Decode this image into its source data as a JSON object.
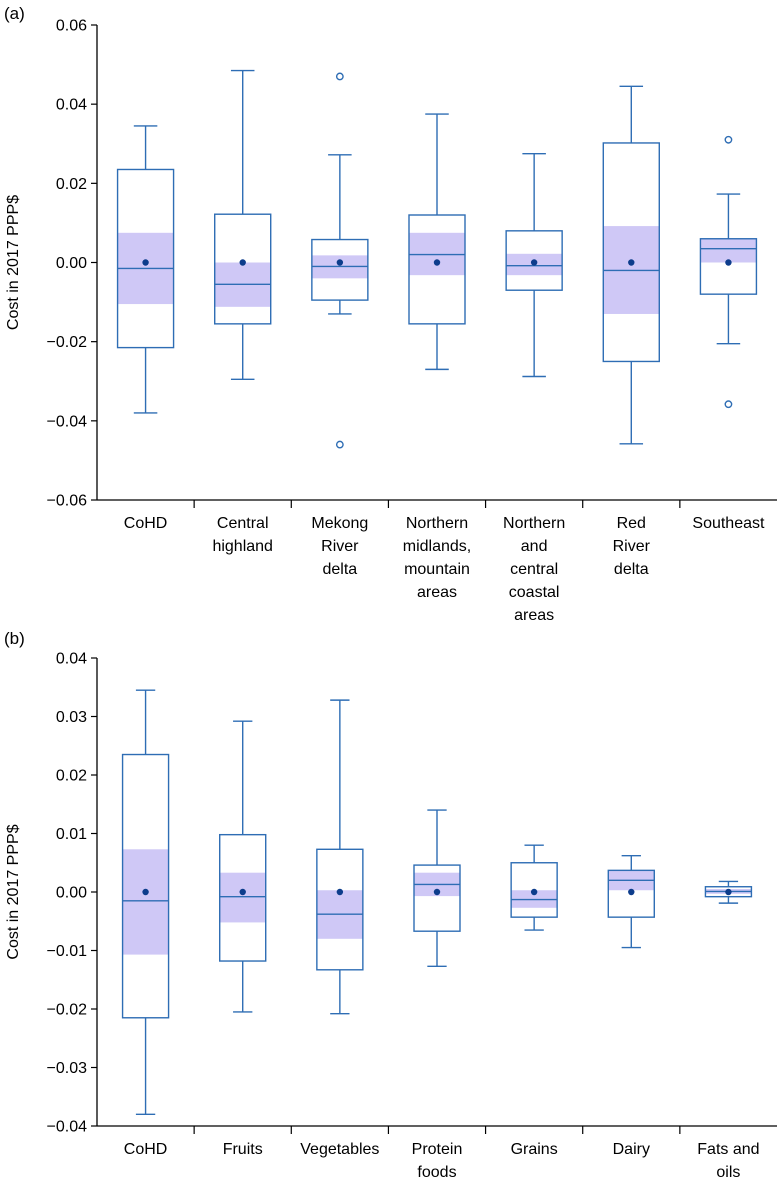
{
  "chart_data": [
    {
      "panel_label": "(a)",
      "type": "box",
      "ylabel": "Cost in 2017 PPP$",
      "ylim": [
        -0.06,
        0.06
      ],
      "yticks": [
        -0.06,
        -0.04,
        -0.02,
        0.0,
        0.02,
        0.04,
        0.06
      ],
      "ytick_labels": [
        "−0.06",
        "−0.04",
        "−0.02",
        "0.00",
        "0.02",
        "0.04",
        "0.06"
      ],
      "categories": [
        [
          "CoHD"
        ],
        [
          "Central",
          "highland"
        ],
        [
          "Mekong",
          "River",
          "delta"
        ],
        [
          "Northern",
          "midlands,",
          "mountain",
          "areas"
        ],
        [
          "Northern",
          "and",
          "central",
          "coastal",
          "areas"
        ],
        [
          "Red",
          "River",
          "delta"
        ],
        [
          "Southeast"
        ]
      ],
      "boxes": [
        {
          "whisker_low": -0.038,
          "q1": -0.0215,
          "median": -0.0015,
          "q3": 0.0235,
          "whisker_high": 0.0345,
          "mean": 0.0,
          "ci": [
            -0.0105,
            0.0075
          ],
          "outliers": []
        },
        {
          "whisker_low": -0.0295,
          "q1": -0.0155,
          "median": -0.0055,
          "q3": 0.0122,
          "whisker_high": 0.0485,
          "mean": 0.0,
          "ci": [
            -0.0112,
            0.0
          ],
          "outliers": []
        },
        {
          "whisker_low": -0.013,
          "q1": -0.0095,
          "median": -0.001,
          "q3": 0.0058,
          "whisker_high": 0.0272,
          "mean": 0.0,
          "ci": [
            -0.004,
            0.0018
          ],
          "outliers": [
            0.047,
            -0.046
          ]
        },
        {
          "whisker_low": -0.027,
          "q1": -0.0155,
          "median": 0.002,
          "q3": 0.012,
          "whisker_high": 0.0375,
          "mean": 0.0,
          "ci": [
            -0.0032,
            0.0075
          ],
          "outliers": []
        },
        {
          "whisker_low": -0.0288,
          "q1": -0.007,
          "median": -0.0008,
          "q3": 0.008,
          "whisker_high": 0.0275,
          "mean": 0.0,
          "ci": [
            -0.0032,
            0.0022
          ],
          "outliers": []
        },
        {
          "whisker_low": -0.0458,
          "q1": -0.025,
          "median": -0.002,
          "q3": 0.0302,
          "whisker_high": 0.0445,
          "mean": 0.0,
          "ci": [
            -0.013,
            0.0092
          ],
          "outliers": []
        },
        {
          "whisker_low": -0.0205,
          "q1": -0.008,
          "median": 0.0035,
          "q3": 0.006,
          "whisker_high": 0.0173,
          "mean": 0.0,
          "ci": [
            0.0,
            0.006
          ],
          "outliers": [
            0.031,
            -0.0358
          ]
        }
      ]
    },
    {
      "panel_label": "(b)",
      "type": "box",
      "ylabel": "Cost in 2017 PPP$",
      "ylim": [
        -0.04,
        0.04
      ],
      "yticks": [
        -0.04,
        -0.03,
        -0.02,
        -0.01,
        0.0,
        0.01,
        0.02,
        0.03,
        0.04
      ],
      "ytick_labels": [
        "−0.04",
        "−0.03",
        "−0.02",
        "−0.01",
        "0.00",
        "0.01",
        "0.02",
        "0.03",
        "0.04"
      ],
      "categories": [
        [
          "CoHD"
        ],
        [
          "Fruits"
        ],
        [
          "Vegetables"
        ],
        [
          "Protein",
          "foods"
        ],
        [
          "Grains"
        ],
        [
          "Dairy"
        ],
        [
          "Fats and",
          "oils"
        ]
      ],
      "boxes": [
        {
          "whisker_low": -0.038,
          "q1": -0.0215,
          "median": -0.0015,
          "q3": 0.0235,
          "whisker_high": 0.0345,
          "mean": 0.0,
          "ci": [
            -0.0107,
            0.0073
          ],
          "outliers": []
        },
        {
          "whisker_low": -0.0205,
          "q1": -0.0118,
          "median": -0.0008,
          "q3": 0.0098,
          "whisker_high": 0.0292,
          "mean": 0.0,
          "ci": [
            -0.0052,
            0.0033
          ],
          "outliers": []
        },
        {
          "whisker_low": -0.0208,
          "q1": -0.0133,
          "median": -0.0038,
          "q3": 0.0073,
          "whisker_high": 0.0328,
          "mean": 0.0,
          "ci": [
            -0.008,
            0.0003
          ],
          "outliers": []
        },
        {
          "whisker_low": -0.0127,
          "q1": -0.0067,
          "median": 0.0013,
          "q3": 0.0046,
          "whisker_high": 0.014,
          "mean": 0.0,
          "ci": [
            -0.0007,
            0.0033
          ],
          "outliers": []
        },
        {
          "whisker_low": -0.0065,
          "q1": -0.0043,
          "median": -0.0013,
          "q3": 0.005,
          "whisker_high": 0.008,
          "mean": 0.0,
          "ci": [
            -0.0027,
            0.0003
          ],
          "outliers": []
        },
        {
          "whisker_low": -0.0095,
          "q1": -0.0043,
          "median": 0.002,
          "q3": 0.0037,
          "whisker_high": 0.0062,
          "mean": 0.0,
          "ci": [
            0.0003,
            0.0037
          ],
          "outliers": []
        },
        {
          "whisker_low": -0.0019,
          "q1": -0.0008,
          "median": 0.0001,
          "q3": 0.0009,
          "whisker_high": 0.0018,
          "mean": 0.0,
          "ci": [
            -0.0003,
            0.0005
          ],
          "outliers": []
        }
      ]
    }
  ],
  "colors": {
    "box_stroke": "#2e6db4",
    "ci_fill": "#cfc8f6",
    "mean_dot": "#0d3d8c",
    "axis": "#000000"
  }
}
